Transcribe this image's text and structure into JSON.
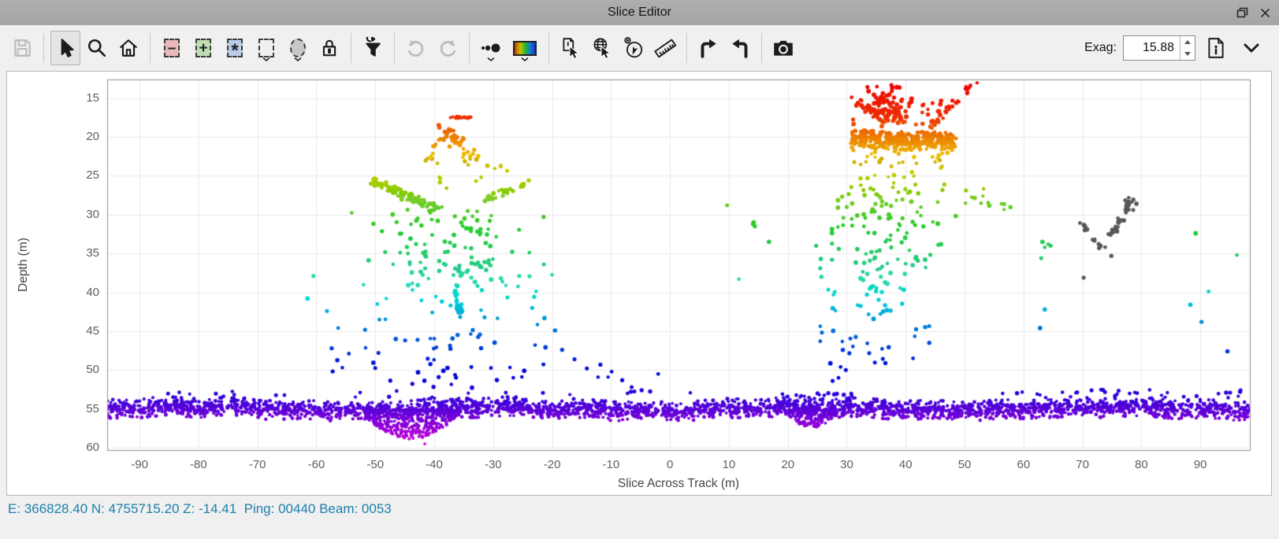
{
  "window": {
    "title": "Slice Editor"
  },
  "toolbar": {
    "exag_label": "Exag:",
    "exag_value": "15.88",
    "icons": [
      "save",
      "select-cursor",
      "zoom",
      "home",
      "reject-select-box",
      "accept-select-box",
      "flag-select-box",
      "rectangle-select",
      "ellipse-select",
      "lock",
      "filter-refresh",
      "undo",
      "redo",
      "point-size",
      "colormap",
      "pick-point",
      "pick-geographic",
      "compass",
      "ruler",
      "turn-right",
      "turn-left",
      "camera",
      "info-document",
      "chevron-down"
    ]
  },
  "statusbar": {
    "text": "E: 366828.40 N: 4755715.20 Z: -14.41  Ping: 00440 Beam: 0053"
  },
  "chart_data": {
    "type": "scatter",
    "xlabel": "Slice Across Track (m)",
    "ylabel": "Depth (m)",
    "xlim": [
      -95.5,
      98.4
    ],
    "ylim": [
      12.6,
      60.3
    ],
    "x_ticks": [
      -90,
      -80,
      -70,
      -60,
      -50,
      -40,
      -30,
      -20,
      -10,
      0,
      10,
      20,
      30,
      40,
      50,
      60,
      70,
      80,
      90
    ],
    "y_ticks": [
      15,
      20,
      25,
      30,
      35,
      40,
      45,
      50,
      55,
      60
    ],
    "grid": true,
    "color_by": "depth",
    "gray_color": "#575757",
    "colormap_stops": [
      [
        13,
        0
      ],
      [
        17.5,
        12
      ],
      [
        19,
        25
      ],
      [
        21,
        38
      ],
      [
        23,
        52
      ],
      [
        25,
        64
      ],
      [
        27,
        80
      ],
      [
        29.5,
        103
      ],
      [
        32,
        125
      ],
      [
        34.5,
        142
      ],
      [
        37,
        158
      ],
      [
        39.5,
        172
      ],
      [
        42,
        188
      ],
      [
        44.5,
        206
      ],
      [
        47,
        222
      ],
      [
        49.5,
        236
      ],
      [
        52,
        246
      ],
      [
        54,
        258
      ],
      [
        55.5,
        268
      ],
      [
        57,
        279
      ],
      [
        59.5,
        296
      ]
    ],
    "clusters": [
      {
        "name": "seafloor-band",
        "gen": "band",
        "n": 2900,
        "r": 2.2,
        "x0": -95.5,
        "x1": 98.4,
        "center": 55.0,
        "amp": 0.24,
        "sd": 0.6,
        "clamp": 1.2
      },
      {
        "name": "seafloor-dip-left",
        "gen": "dip",
        "n": 430,
        "r": 2.1,
        "x0": -52,
        "x1": -35.5,
        "base": 55.3,
        "peak": 58.9,
        "cx": -44,
        "w": 8.5
      },
      {
        "name": "seafloor-dip-right",
        "gen": "dip",
        "n": 130,
        "r": 2.0,
        "x0": 19.5,
        "x1": 28.5,
        "base": 55.4,
        "peak": 57.4,
        "cx": 24,
        "w": 4.5
      },
      {
        "name": "lone-deep-dot",
        "gen": "pts",
        "r": 2.2,
        "pts": [
          [
            -41.6,
            59.5
          ]
        ]
      },
      {
        "name": "floaters-left",
        "gen": "rect",
        "n": 14,
        "r": 2.4,
        "x0": -88,
        "x1": -40,
        "d0": 52.6,
        "d1": 53.5
      },
      {
        "name": "floaters-mid",
        "gen": "rect",
        "n": 8,
        "r": 2.4,
        "x0": -38,
        "x1": 8,
        "d0": 52.4,
        "d1": 53.4
      },
      {
        "name": "floaters-20s",
        "gen": "rect",
        "n": 14,
        "r": 2.4,
        "x0": 18,
        "x1": 31,
        "d0": 52.9,
        "d1": 53.6
      },
      {
        "name": "floaters-high",
        "gen": "pts",
        "r": 2.4,
        "pts": [
          [
            27.6,
            51.4
          ],
          [
            28.6,
            51.0
          ],
          [
            -2.0,
            50.5
          ],
          [
            -10.5,
            50.9
          ]
        ]
      },
      {
        "name": "floaters-right",
        "gen": "rect",
        "n": 34,
        "r": 2.4,
        "x0": 55,
        "x1": 97.5,
        "d0": 52.5,
        "d1": 53.6
      },
      {
        "name": "lp-red-bar",
        "gen": "line",
        "n": 16,
        "r": 2.3,
        "x0": -37.3,
        "d0": 17.45,
        "x1": -33.2,
        "d1": 17.55,
        "jx": 0.15,
        "jy": 0.12
      },
      {
        "name": "lp-orange",
        "gen": "line",
        "n": 40,
        "r": 2.6,
        "x0": -39.2,
        "d0": 18.6,
        "x1": -33.5,
        "d1": 22.6,
        "jx": 1.1,
        "jy": 0.9
      },
      {
        "name": "lp-orange-arc",
        "gen": "line",
        "n": 10,
        "r": 2.5,
        "x0": -41.8,
        "d0": 23.8,
        "x1": -38.8,
        "d1": 19.6,
        "jx": 0.5,
        "jy": 0.5
      },
      {
        "name": "lp-yellow",
        "gen": "rect",
        "n": 13,
        "r": 2.5,
        "x0": -41,
        "x1": -27,
        "d0": 23.3,
        "d1": 26.6
      },
      {
        "name": "lp-yellowgreen-band",
        "gen": "line",
        "n": 92,
        "r": 2.6,
        "x0": -50.6,
        "d0": 25.6,
        "x1": -39.4,
        "d1": 29.4,
        "jx": 0.8,
        "jy": 0.45
      },
      {
        "name": "lp-yellowgreen-band2",
        "gen": "line",
        "n": 32,
        "r": 2.6,
        "x0": -31.6,
        "d0": 28.2,
        "x1": -24.3,
        "d1": 25.9,
        "jx": 0.6,
        "jy": 0.4
      },
      {
        "name": "lp-green",
        "gen": "gaussrect",
        "n": 95,
        "r": 2.6,
        "cx": -37,
        "sx": 6.5,
        "x0": -54,
        "x1": -20,
        "d0": 29.3,
        "d1": 38.0
      },
      {
        "name": "lp-teal",
        "gen": "gaussrect",
        "n": 26,
        "r": 2.6,
        "cx": -37,
        "sx": 7.5,
        "x0": -52,
        "x1": -20,
        "d0": 36.0,
        "d1": 40.0
      },
      {
        "name": "lp-cyan-streak",
        "gen": "line",
        "n": 20,
        "r": 2.6,
        "x0": -36.2,
        "d0": 39.8,
        "x1": -35.3,
        "d1": 43.4,
        "jx": 0.5,
        "jy": 0.5
      },
      {
        "name": "lp-cyan",
        "gen": "rect",
        "n": 14,
        "r": 2.5,
        "x0": -50,
        "x1": -22,
        "d0": 40.0,
        "d1": 43.5
      },
      {
        "name": "lp-blue",
        "gen": "gaussrect",
        "n": 40,
        "r": 2.6,
        "cx": -36,
        "sx": 9,
        "x0": -58,
        "x1": -13,
        "d0": 43.5,
        "d1": 50.5
      },
      {
        "name": "lp-deepblue",
        "gen": "rect",
        "n": 12,
        "r": 2.5,
        "x0": -48,
        "x1": -25,
        "d0": 50.5,
        "d1": 52.6
      },
      {
        "name": "lp-arm-left",
        "gen": "pts",
        "r": 2.5,
        "pts": [
          [
            -60.5,
            37.9
          ],
          [
            -58.2,
            42.4
          ],
          [
            -56.3,
            44.6
          ],
          [
            -55.6,
            49.7
          ],
          [
            -61.5,
            40.8
          ],
          [
            -57.4,
            47.2
          ]
        ]
      },
      {
        "name": "lp-arm-right",
        "gen": "pts",
        "r": 2.5,
        "pts": [
          [
            -18.3,
            47.4
          ],
          [
            -16.2,
            48.6
          ],
          [
            -14.1,
            49.8
          ],
          [
            -12.2,
            50.9
          ],
          [
            -19.5,
            44.9
          ],
          [
            -21.3,
            43.3
          ],
          [
            -8.1,
            51.3
          ],
          [
            -6.5,
            52.2
          ],
          [
            -4.8,
            52.6
          ],
          [
            -9.9,
            50.2
          ],
          [
            -11.8,
            49.3
          ],
          [
            -7.2,
            53.0
          ]
        ]
      },
      {
        "name": "rp-red-blob",
        "gen": "gauss",
        "n": 140,
        "r": 2.7,
        "cx": 36.3,
        "cy": 16.6,
        "sx": 2.1,
        "sy": 1.5,
        "dmin": 13.2
      },
      {
        "name": "rp-red-bridge",
        "gen": "rect",
        "n": 16,
        "r": 2.6,
        "x0": 40.5,
        "x1": 46.5,
        "d0": 15.2,
        "d1": 18.6
      },
      {
        "name": "rp-red-streak",
        "gen": "line",
        "n": 30,
        "r": 2.5,
        "x0": 44.0,
        "d0": 18.8,
        "x1": 51.8,
        "d1": 12.7,
        "jx": 0.5,
        "jy": 0.45
      },
      {
        "name": "rp-orange-band",
        "gen": "band",
        "n": 330,
        "r": 2.5,
        "x0": 30.6,
        "x1": 48.6,
        "center": 20.4,
        "amp": 0.18,
        "sd": 0.55,
        "clamp": 1.1
      },
      {
        "name": "rp-orange-fringe",
        "gen": "rect",
        "n": 26,
        "r": 2.5,
        "x0": 31,
        "x1": 47.5,
        "d0": 21.6,
        "d1": 23.6
      },
      {
        "name": "rp-yellow",
        "gen": "rect",
        "n": 15,
        "r": 2.5,
        "x0": 30,
        "x1": 47,
        "d0": 23.6,
        "d1": 26.4
      },
      {
        "name": "rp-green",
        "gen": "gaussrect",
        "n": 60,
        "r": 2.6,
        "cx": 37.5,
        "sx": 5.5,
        "x0": 28.5,
        "x1": 48.5,
        "d0": 26.4,
        "d1": 31.6
      },
      {
        "name": "rp-green-right",
        "gen": "rect",
        "n": 13,
        "r": 2.5,
        "x0": 48.5,
        "x1": 58,
        "d0": 26.4,
        "d1": 29.6
      },
      {
        "name": "rp-teal",
        "gen": "gaussrect",
        "n": 42,
        "r": 2.6,
        "cx": 36.5,
        "sx": 5,
        "x0": 27.5,
        "x1": 46,
        "d0": 31.6,
        "d1": 37.2
      },
      {
        "name": "rp-cyan",
        "gen": "gaussrect",
        "n": 34,
        "r": 2.6,
        "cx": 35,
        "sx": 5,
        "x0": 26.5,
        "x1": 45,
        "d0": 37.2,
        "d1": 43.6
      },
      {
        "name": "rp-blue",
        "gen": "gaussrect",
        "n": 26,
        "r": 2.6,
        "cx": 34.5,
        "sx": 5.5,
        "x0": 25.5,
        "x1": 44,
        "d0": 43.6,
        "d1": 50.2
      },
      {
        "name": "mid-green-dots",
        "gen": "pts",
        "r": 2.6,
        "pts": [
          [
            14.0,
            31.2
          ],
          [
            14.4,
            31.5
          ],
          [
            14.2,
            31.0
          ],
          [
            16.8,
            33.5
          ],
          [
            11.7,
            38.3
          ],
          [
            24.8,
            34.0
          ],
          [
            25.6,
            35.7
          ],
          [
            25.5,
            36.9
          ],
          [
            25.7,
            38.0
          ],
          [
            9.7,
            28.8
          ]
        ]
      },
      {
        "name": "gray-streak",
        "gen": "line",
        "n": 24,
        "r": 2.6,
        "color": "#575757",
        "x0": 74.3,
        "d0": 33.2,
        "x1": 78.4,
        "d1": 27.8,
        "jx": 0.5,
        "jy": 0.6
      },
      {
        "name": "gray-top-clump",
        "gen": "rect",
        "n": 9,
        "r": 2.6,
        "color": "#575757",
        "x0": 77.2,
        "x1": 79.3,
        "d0": 27.5,
        "d1": 29.6
      },
      {
        "name": "gray-seg2",
        "gen": "line",
        "n": 7,
        "r": 2.6,
        "color": "#575757",
        "x0": 71.4,
        "d0": 32.7,
        "x1": 73.6,
        "d1": 34.5,
        "jx": 0.3,
        "jy": 0.3
      },
      {
        "name": "gray-seg3",
        "gen": "line",
        "n": 5,
        "r": 2.6,
        "color": "#575757",
        "x0": 69.6,
        "d0": 30.9,
        "x1": 70.8,
        "d1": 31.9,
        "jx": 0.25,
        "jy": 0.25
      },
      {
        "name": "gray-lone",
        "gen": "pts",
        "r": 2.5,
        "color": "#575757",
        "pts": [
          [
            70.2,
            38.1
          ],
          [
            74.9,
            35.3
          ]
        ]
      },
      {
        "name": "right-green-dots",
        "gen": "pts",
        "r": 2.6,
        "pts": [
          [
            63.2,
            33.5
          ],
          [
            64.2,
            33.8
          ],
          [
            63.6,
            34.2
          ],
          [
            64.6,
            34.0
          ],
          [
            63.0,
            35.6
          ],
          [
            89.2,
            32.4
          ]
        ]
      },
      {
        "name": "right-cyanblue-dots",
        "gen": "pts",
        "r": 2.6,
        "pts": [
          [
            63.6,
            42.2
          ],
          [
            62.8,
            44.6
          ],
          [
            88.3,
            41.6
          ],
          [
            91.4,
            39.9
          ],
          [
            90.2,
            43.8
          ],
          [
            94.6,
            47.6
          ],
          [
            96.2,
            35.2
          ]
        ]
      }
    ]
  }
}
